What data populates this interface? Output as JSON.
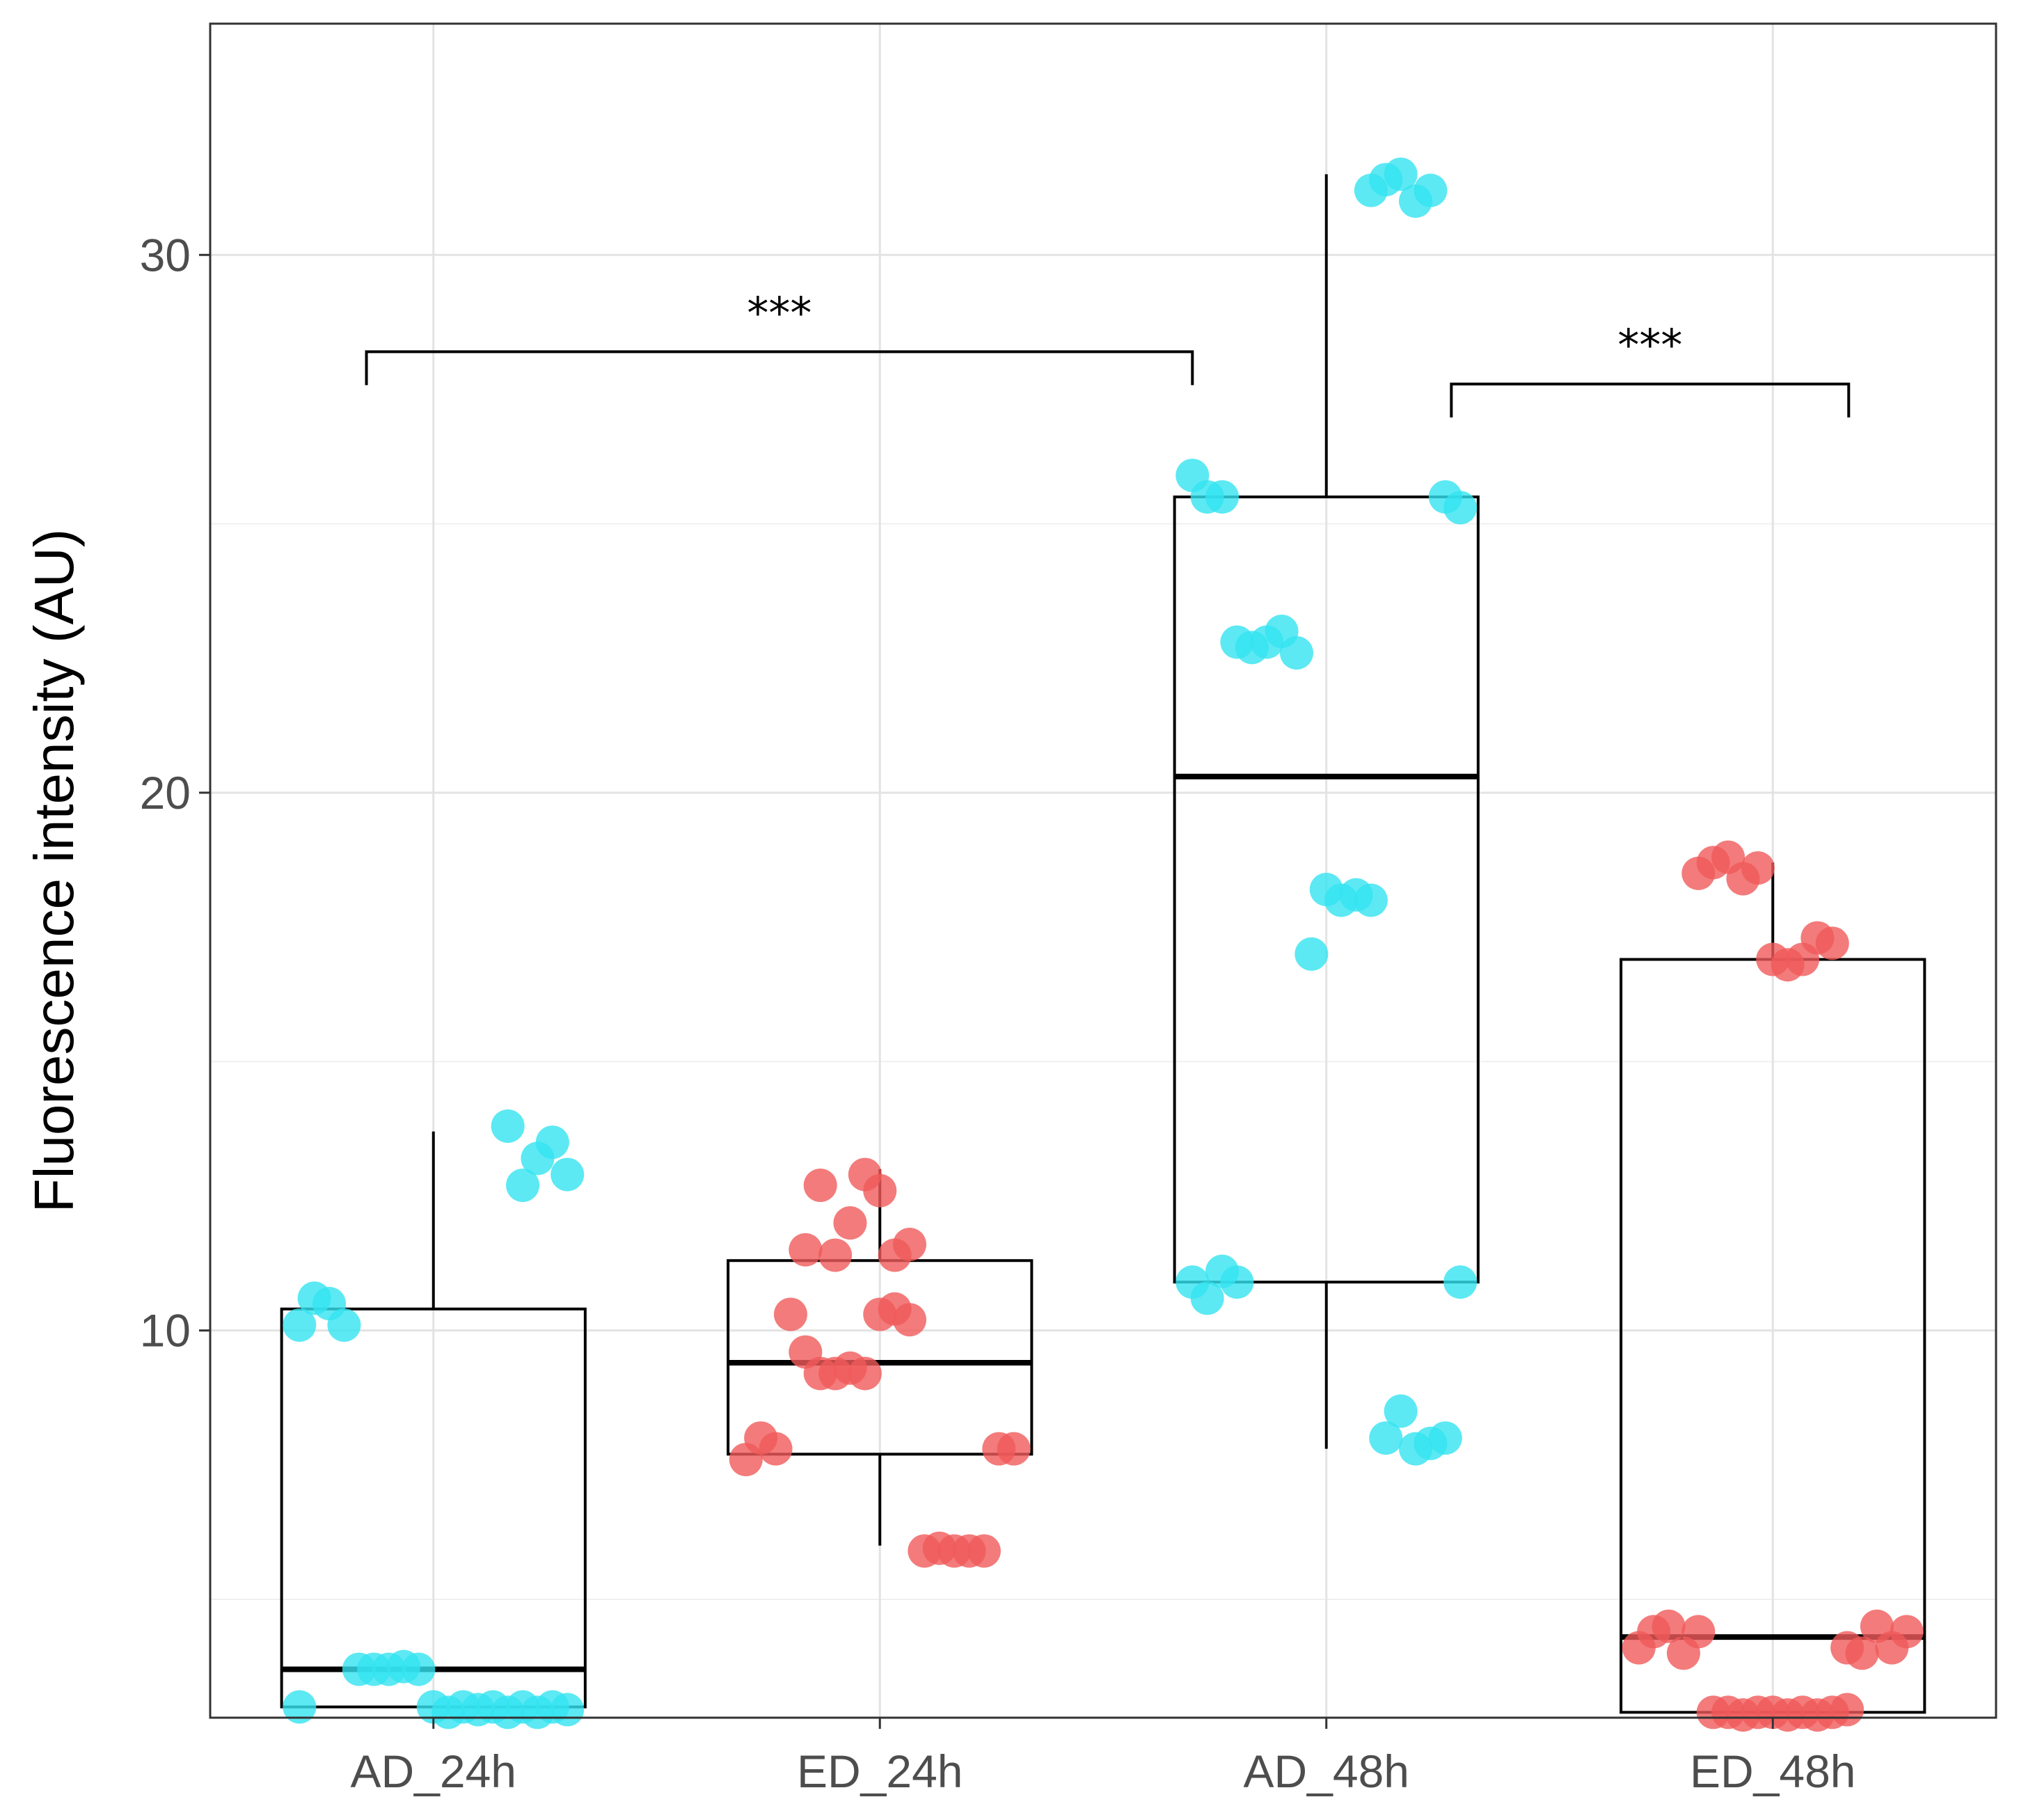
{
  "chart_data": {
    "type": "boxplot",
    "title": "",
    "xlabel": "",
    "ylabel": "Fluorescence intensity (AU)",
    "ylim": [
      2.8,
      34.3
    ],
    "yticks": [
      10,
      20,
      30
    ],
    "grid": true,
    "categories": [
      "AD_24h",
      "ED_24h",
      "AD_48h",
      "ED_48h"
    ],
    "colors": {
      "AD": "#33e4f0",
      "ED": "#f05a5a"
    },
    "boxes": [
      {
        "group": "AD_24h",
        "color_key": "AD",
        "q1": 3.0,
        "median": 3.7,
        "q3": 10.4,
        "whisker_low": 3.0,
        "whisker_high": 13.7,
        "points": [
          3.0,
          2.95,
          3.0,
          2.9,
          3.0,
          2.9,
          3.0,
          2.95,
          3.0,
          2.9,
          3.0,
          3.7,
          3.75,
          3.7,
          3.7,
          3.7,
          10.1,
          10.5,
          10.6,
          10.1,
          12.9,
          13.5,
          13.2,
          12.7,
          13.8
        ]
      },
      {
        "group": "ED_24h",
        "color_key": "ED",
        "q1": 7.7,
        "median": 9.4,
        "q3": 11.3,
        "whisker_low": 6.0,
        "whisker_high": 13.0,
        "points": [
          10.2,
          10.4,
          10.3,
          9.2,
          9.3,
          9.2,
          9.2,
          9.6,
          10.3,
          7.8,
          8.0,
          7.6,
          7.8,
          7.8,
          5.9,
          5.9,
          5.9,
          5.95,
          5.9,
          11.6,
          11.4,
          12.6,
          12.9,
          12.0,
          11.4,
          12.7,
          11.5
        ]
      },
      {
        "group": "AD_48h",
        "color_key": "AD",
        "q1": 10.9,
        "median": 20.3,
        "q3": 25.5,
        "whisker_low": 7.8,
        "whisker_high": 31.5,
        "points": [
          10.9,
          11.1,
          10.6,
          10.9,
          10.9,
          8.0,
          7.9,
          7.8,
          8.5,
          8.0,
          18.0,
          18.1,
          18.0,
          18.2,
          17.0,
          22.6,
          23.0,
          22.8,
          22.7,
          22.8,
          25.5,
          25.5,
          25.9,
          25.3,
          25.5,
          31.2,
          31.0,
          31.5,
          31.4,
          31.2
        ]
      },
      {
        "group": "ED_48h",
        "color_key": "ED",
        "q1": 2.9,
        "median": 4.3,
        "q3": 16.9,
        "whisker_low": 2.9,
        "whisker_high": 18.7,
        "points": [
          2.95,
          2.9,
          2.85,
          2.9,
          2.85,
          2.9,
          2.9,
          2.85,
          2.9,
          2.9,
          4.4,
          4.0,
          4.5,
          4.4,
          4.1,
          4.4,
          4.1,
          4.5,
          4.0,
          4.1,
          17.2,
          17.3,
          16.9,
          16.8,
          16.9,
          18.6,
          18.4,
          18.8,
          18.7,
          18.5
        ]
      }
    ],
    "annotations": [
      {
        "from": "AD_24h",
        "to": "AD_48h",
        "label": "***",
        "y": 28.2
      },
      {
        "from": "AD_48h",
        "to": "ED_48h",
        "label": "***",
        "y": 27.6
      }
    ]
  }
}
